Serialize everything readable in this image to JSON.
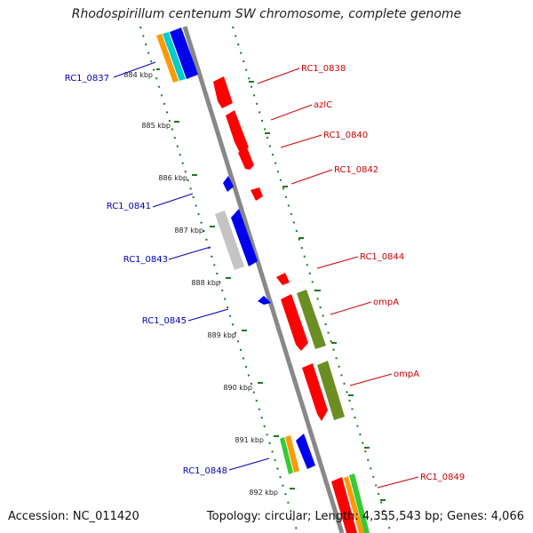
{
  "title": "Rhodospirillum centenum SW chromosome, complete genome",
  "footer": {
    "accession": "Accession: NC_011420",
    "summary": "Topology: circular; Length: 4,355,543 bp; Genes: 4,066"
  },
  "colors": {
    "backbone": "#888888",
    "tick": "#1a7a1a",
    "forward_label": "#cc0000",
    "reverse_label": "#0000bb",
    "red": "#ff0000",
    "blue": "#0000ee",
    "olive": "#6b8e23",
    "gray": "#bbbbbb",
    "orange": "#ff9900",
    "cyan": "#00cccc",
    "green": "#33cc33"
  },
  "ticks": [
    "884 kbp",
    "885 kbp",
    "886 kbp",
    "887 kbp",
    "888 kbp",
    "889 kbp",
    "890 kbp",
    "891 kbp",
    "892 kbp"
  ],
  "gene_labels": {
    "left": [
      "RC1_0837",
      "RC1_0841",
      "RC1_0843",
      "RC1_0845",
      "RC1_0848"
    ],
    "right": [
      "RC1_0838",
      "azlC",
      "RC1_0840",
      "RC1_0842",
      "RC1_0844",
      "ompA",
      "ompA",
      "RC1_0849"
    ]
  }
}
